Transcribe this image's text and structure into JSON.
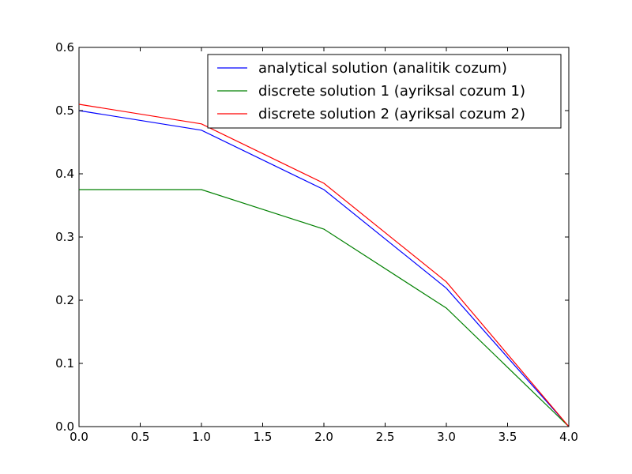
{
  "chart_data": {
    "type": "line",
    "title": "",
    "xlabel": "",
    "ylabel": "",
    "xlim": [
      0.0,
      4.0
    ],
    "ylim": [
      0.0,
      0.6
    ],
    "x_ticks": [
      0.0,
      0.5,
      1.0,
      1.5,
      2.0,
      2.5,
      3.0,
      3.5,
      4.0
    ],
    "x_tick_labels": [
      "0.0",
      "0.5",
      "1.0",
      "1.5",
      "2.0",
      "2.5",
      "3.0",
      "3.5",
      "4.0"
    ],
    "y_ticks": [
      0.0,
      0.1,
      0.2,
      0.3,
      0.4,
      0.5,
      0.6
    ],
    "y_tick_labels": [
      "0.0",
      "0.1",
      "0.2",
      "0.3",
      "0.4",
      "0.5",
      "0.6"
    ],
    "grid": false,
    "legend_position": "top-right",
    "series": [
      {
        "name": "analytical solution (analitik cozum)",
        "color": "#0000ff",
        "x": [
          0,
          1,
          2,
          3,
          4
        ],
        "y": [
          0.5,
          0.469,
          0.375,
          0.219,
          0.0
        ]
      },
      {
        "name": "discrete solution 1 (ayriksal cozum 1)",
        "color": "#008000",
        "x": [
          0,
          1,
          2,
          3,
          4
        ],
        "y": [
          0.375,
          0.375,
          0.3125,
          0.1875,
          0.0
        ]
      },
      {
        "name": "discrete solution 2 (ayriksal cozum 2)",
        "color": "#ff0000",
        "x": [
          0,
          1,
          2,
          3,
          4
        ],
        "y": [
          0.51,
          0.479,
          0.385,
          0.229,
          0.0
        ]
      }
    ]
  }
}
